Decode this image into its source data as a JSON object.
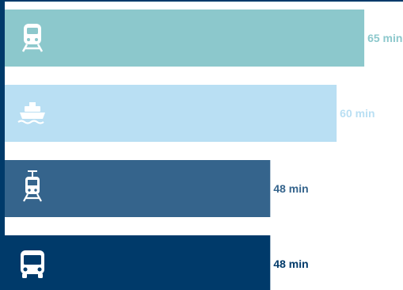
{
  "chart_data": {
    "type": "bar",
    "orientation": "horizontal",
    "categories": [
      "train",
      "ferry",
      "light-rail",
      "bus"
    ],
    "values": [
      65,
      60,
      48,
      48
    ],
    "value_labels": [
      "65 min",
      "60 min",
      "48 min",
      "48 min"
    ],
    "unit": "min",
    "xlim": [
      0,
      72
    ],
    "grid": false,
    "legend": "none",
    "colors": [
      "#8cc8cc",
      "#b9dff3",
      "#35648c",
      "#003a6a"
    ],
    "label_colors": [
      "#8cc8cc",
      "#b9dff3",
      "#35648c",
      "#003a6a"
    ],
    "icons": [
      "train-icon",
      "ferry-icon",
      "light-rail-icon",
      "bus-icon"
    ],
    "axis_color": "#003a6a"
  }
}
